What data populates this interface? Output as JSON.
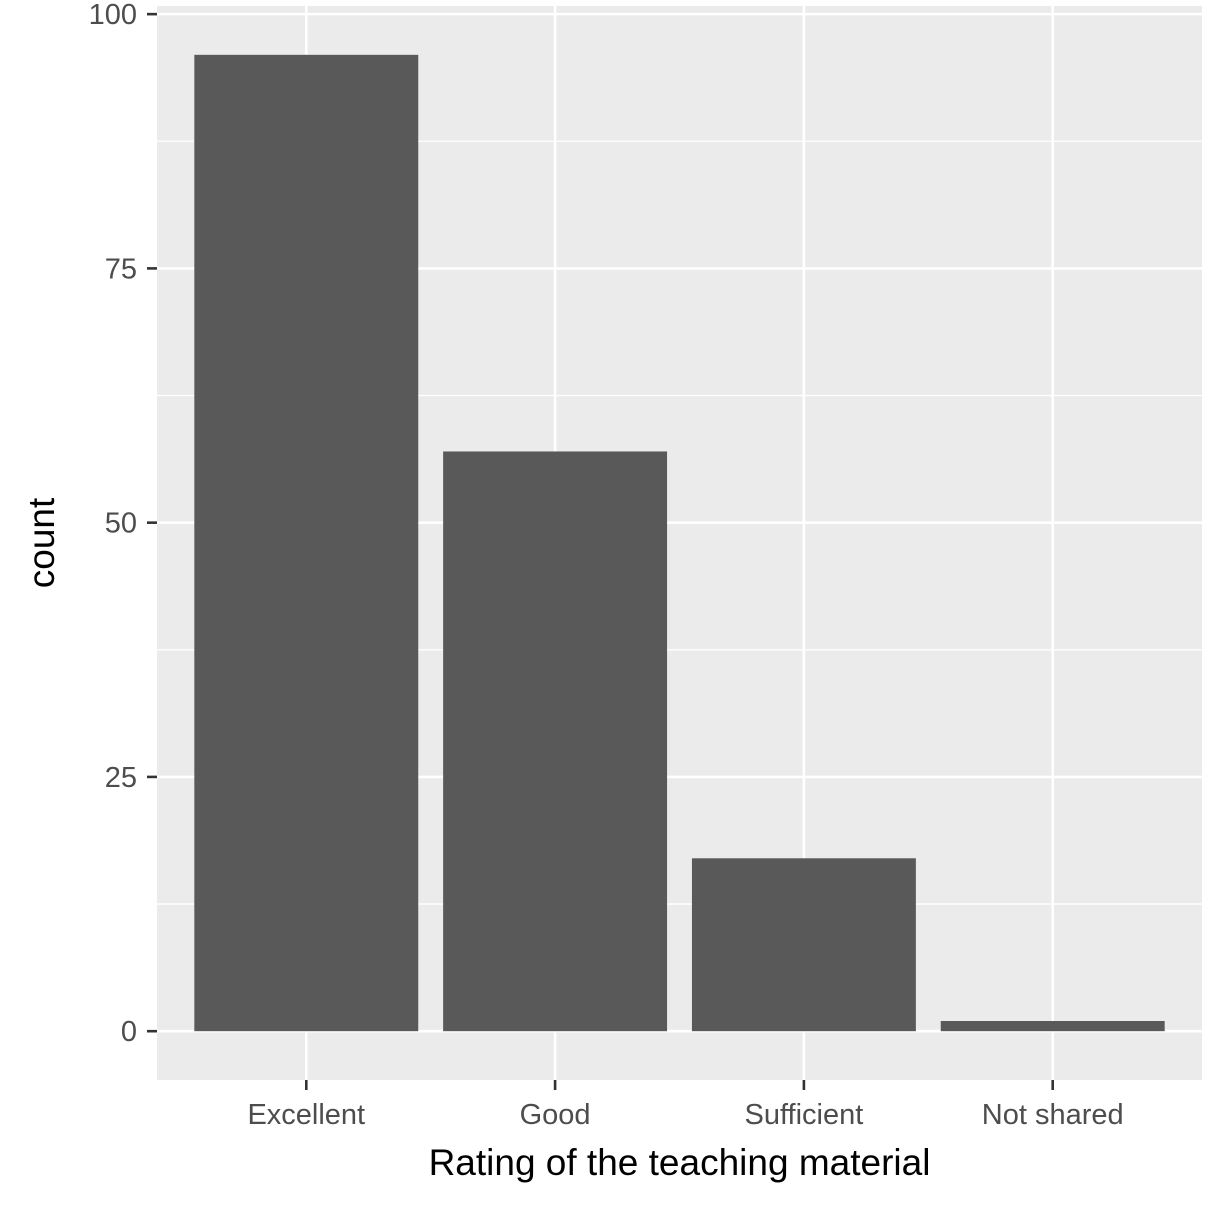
{
  "chart_data": {
    "type": "bar",
    "categories": [
      "Excellent",
      "Good",
      "Sufficient",
      "Not shared"
    ],
    "values": [
      96,
      57,
      17,
      1
    ],
    "title": "",
    "xlabel": "Rating of the teaching material",
    "ylabel": "count",
    "ylim": [
      -4.8,
      100.8
    ],
    "yticks": [
      0,
      25,
      50,
      75,
      100
    ],
    "yticks_minor": [
      12.5,
      37.5,
      62.5,
      87.5
    ],
    "grid": true,
    "legend": "none",
    "colors": {
      "bar": "#595959",
      "panel": "#ebebeb",
      "grid": "#ffffff",
      "tick": "#333333",
      "tick_text": "#4d4d4d",
      "title_text": "#000000"
    }
  }
}
